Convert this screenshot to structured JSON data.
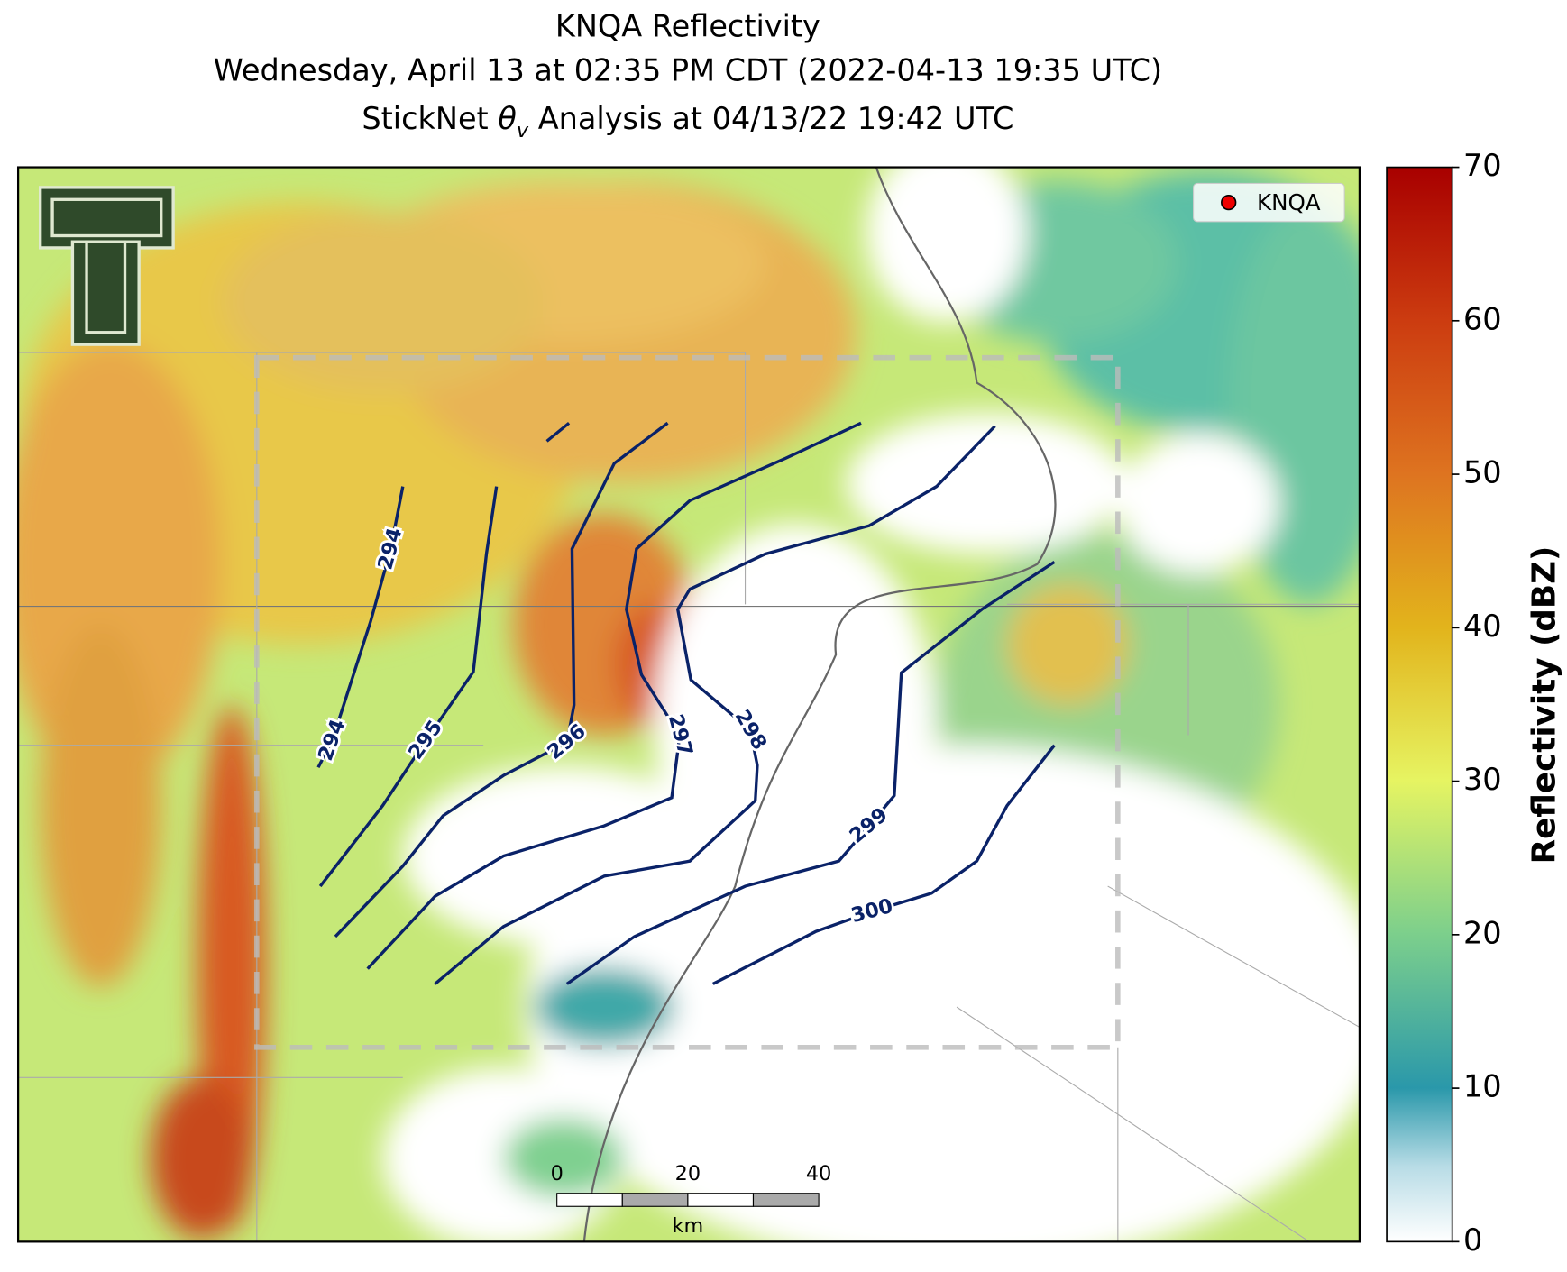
{
  "title": {
    "line1": "KNQA Reflectivity",
    "line2": "Wednesday, April 13 at 02:35 PM CDT (2022-04-13 19:35 UTC)",
    "line3_prefix": "StickNet ",
    "line3_symbol": "θ",
    "line3_subscript": "v",
    "line3_suffix": " Analysis at 04/13/22 19:42 UTC"
  },
  "legend": {
    "label": "KNQA"
  },
  "contours": [
    {
      "level": 294
    },
    {
      "level": 295
    },
    {
      "level": 296
    },
    {
      "level": 297
    },
    {
      "level": 298
    },
    {
      "level": 299
    },
    {
      "level": 300
    }
  ],
  "scale_bar": {
    "ticks": [
      0,
      20,
      40
    ],
    "unit": "km"
  },
  "colorbar": {
    "label": "Reflectivity (dBZ)",
    "lim": [
      0,
      70
    ],
    "ticks": [
      0,
      10,
      20,
      30,
      40,
      50,
      60,
      70
    ]
  }
}
